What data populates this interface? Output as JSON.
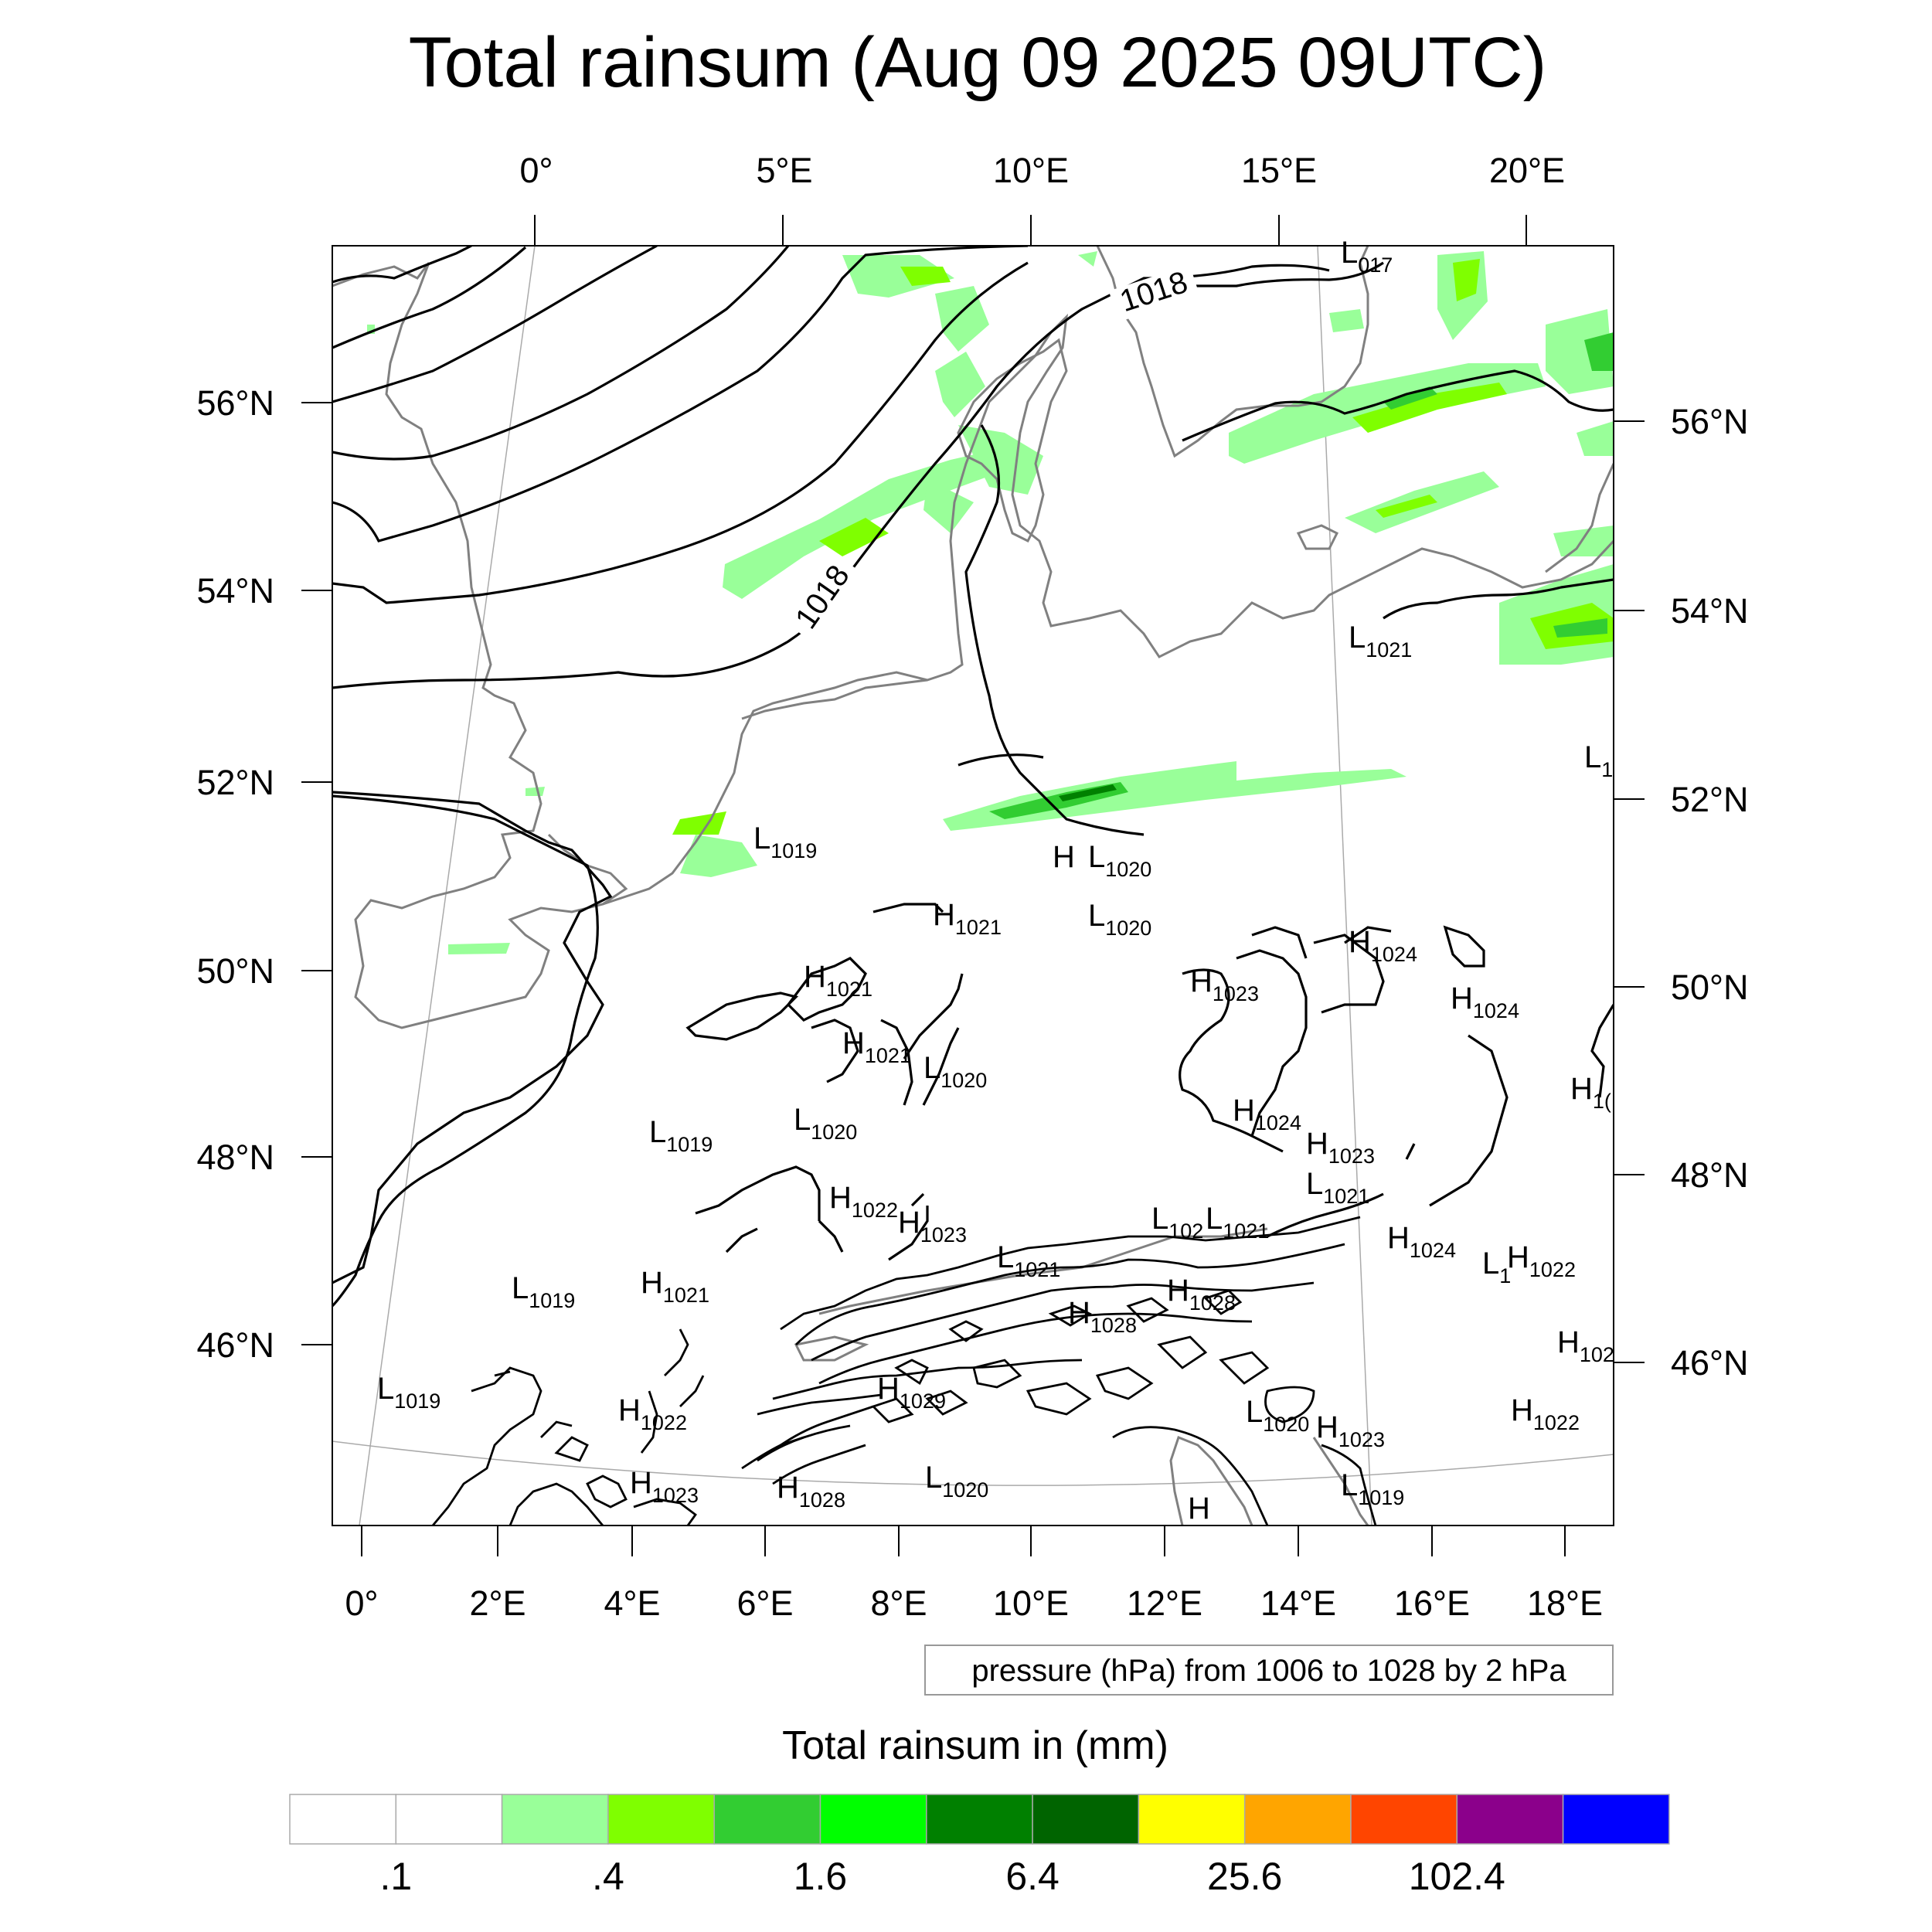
{
  "title": "Total rainsum (Aug 09 2025 09UTC)",
  "top_lon_labels": [
    "0°",
    "5°E",
    "10°E",
    "15°E",
    "20°E"
  ],
  "bottom_lon_labels": [
    "0°",
    "2°E",
    "4°E",
    "6°E",
    "8°E",
    "10°E",
    "12°E",
    "14°E",
    "16°E",
    "18°E"
  ],
  "left_lat_labels": [
    "56°N",
    "54°N",
    "52°N",
    "50°N",
    "48°N",
    "46°N"
  ],
  "right_lat_labels": [
    "56°N",
    "54°N",
    "52°N",
    "50°N",
    "48°N",
    "46°N"
  ],
  "isobar_labels": [
    "1018",
    "1018"
  ],
  "pressure_centers": [
    {
      "t": "L",
      "v": "017"
    },
    {
      "t": "L",
      "v": "1021"
    },
    {
      "t": "L",
      "v": "1"
    },
    {
      "t": "L",
      "v": "1019"
    },
    {
      "t": "H",
      "v": ""
    },
    {
      "t": "L",
      "v": "1020"
    },
    {
      "t": "H",
      "v": "1021"
    },
    {
      "t": "L",
      "v": "1020"
    },
    {
      "t": "H",
      "v": "1024"
    },
    {
      "t": "H",
      "v": "1021"
    },
    {
      "t": "H",
      "v": "1023"
    },
    {
      "t": "H",
      "v": "1024"
    },
    {
      "t": "H",
      "v": "1021"
    },
    {
      "t": "L",
      "v": "1020"
    },
    {
      "t": "H",
      "v": "1("
    },
    {
      "t": "L",
      "v": "1019"
    },
    {
      "t": "L",
      "v": "1020"
    },
    {
      "t": "H",
      "v": "1024"
    },
    {
      "t": "H",
      "v": "1023"
    },
    {
      "t": "L",
      "v": "1021"
    },
    {
      "t": "H",
      "v": "1022"
    },
    {
      "t": "H",
      "v": "1023"
    },
    {
      "t": "L",
      "v": "102"
    },
    {
      "t": "L",
      "v": "1021"
    },
    {
      "t": "H",
      "v": "1024"
    },
    {
      "t": "L",
      "v": "1021"
    },
    {
      "t": "H",
      "v": "1021"
    },
    {
      "t": "L",
      "v": "1019"
    },
    {
      "t": "H",
      "v": "1028"
    },
    {
      "t": "L",
      "v": "1"
    },
    {
      "t": "H",
      "v": "1022"
    },
    {
      "t": "H",
      "v": "1028"
    },
    {
      "t": "H",
      "v": "102"
    },
    {
      "t": "L",
      "v": "1019"
    },
    {
      "t": "H",
      "v": "1022"
    },
    {
      "t": "H",
      "v": "1029"
    },
    {
      "t": "L",
      "v": "1020"
    },
    {
      "t": "H",
      "v": "1023"
    },
    {
      "t": "H",
      "v": "1022"
    },
    {
      "t": "H",
      "v": "1023"
    },
    {
      "t": "H",
      "v": "1028"
    },
    {
      "t": "L",
      "v": "1020"
    },
    {
      "t": "H",
      "v": ""
    },
    {
      "t": "L",
      "v": "1019"
    }
  ],
  "info_box": "pressure (hPa) from 1006 to 1028 by 2 hPa",
  "legend_title": "Total rainsum in (mm)",
  "legend_colors": [
    "#ffffff",
    "#ffffff",
    "#99ff99",
    "#7fff00",
    "#32cd32",
    "#00ff00",
    "#008000",
    "#006400",
    "#ffff00",
    "#ffa500",
    "#ff4500",
    "#8b008b",
    "#0000ff"
  ],
  "legend_labels": [
    ".1",
    ".4",
    "1.6",
    "6.4",
    "25.6",
    "102.4"
  ]
}
